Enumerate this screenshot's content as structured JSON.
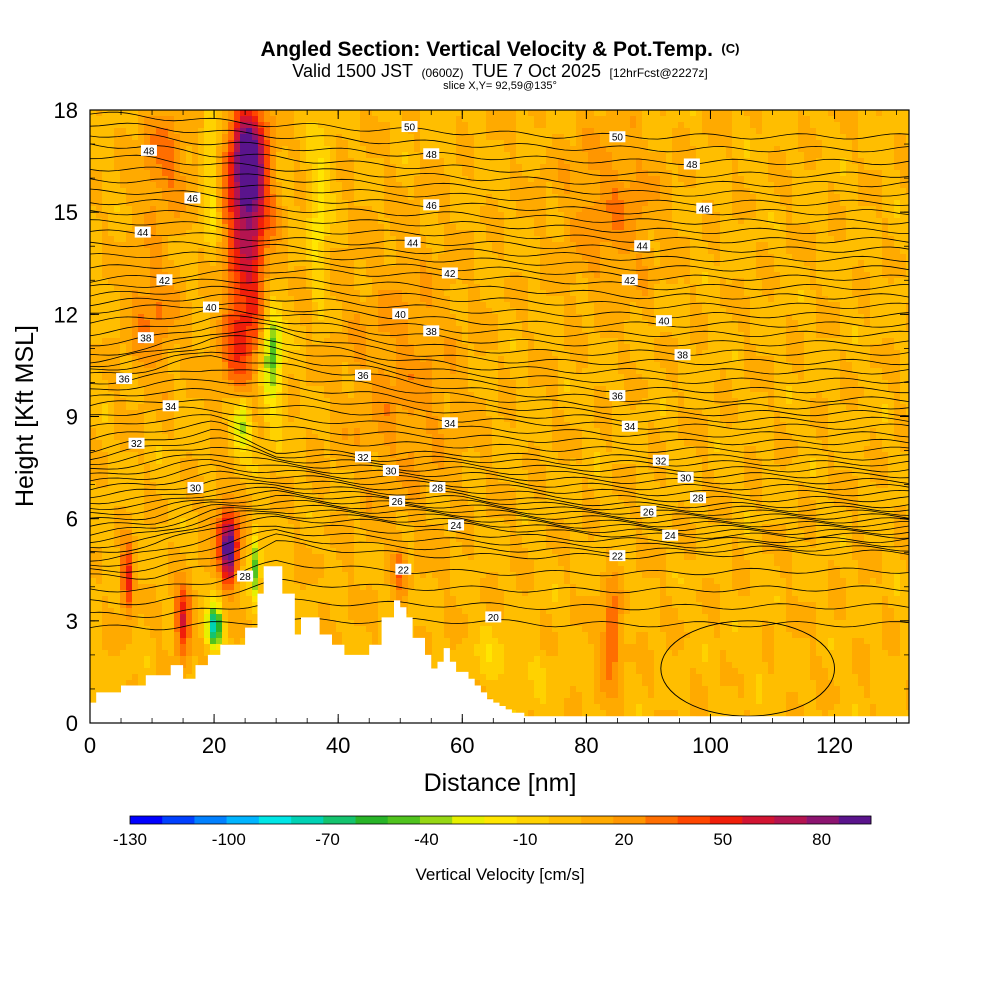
{
  "chart_data": {
    "type": "heatmap",
    "title": "Angled Section: Vertical Velocity & Pot.Temp.",
    "title_unit": "(C)",
    "subtitle_parts": [
      "Valid 1500 JST",
      "(0600Z)",
      "TUE 7 Oct 2025",
      "[12hrFcst@2227z]"
    ],
    "slice_label": "slice X,Y= 92,59@135°",
    "xlabel": "Distance [nm]",
    "ylabel": "Height [Kft MSL]",
    "xlim": [
      0,
      132
    ],
    "ylim": [
      0,
      18
    ],
    "x_ticks": [
      "0",
      "20",
      "40",
      "60",
      "80",
      "100",
      "120"
    ],
    "y_ticks": [
      "0",
      "3",
      "6",
      "9",
      "12",
      "15",
      "18"
    ],
    "x_tick_values": [
      0,
      20,
      40,
      60,
      80,
      100,
      120
    ],
    "y_tick_values": [
      0,
      3,
      6,
      9,
      12,
      15,
      18
    ],
    "colorbar": {
      "label": "Vertical Velocity [cm/s]",
      "tick_labels": [
        "-130",
        "-100",
        "-70",
        "-40",
        "-10",
        "20",
        "50",
        "80"
      ],
      "tick_values": [
        -130,
        -100,
        -70,
        -40,
        -10,
        20,
        50,
        80
      ],
      "range": [
        -130,
        95
      ],
      "colors": [
        "#0000ff",
        "#0040ff",
        "#0080ff",
        "#00b4ff",
        "#00e6e6",
        "#00d2b4",
        "#14c36e",
        "#28b428",
        "#50c31e",
        "#96d714",
        "#e6f000",
        "#ffe600",
        "#ffd200",
        "#ffbe00",
        "#ffaa00",
        "#ff9600",
        "#ff6e00",
        "#ff4600",
        "#f01e0a",
        "#d21432",
        "#b41450",
        "#8c1470",
        "#5a148c"
      ]
    },
    "background_velocity": 5,
    "velocity_features": [
      {
        "x": 25.5,
        "y": 16.5,
        "sx": 2.8,
        "sy": 1.6,
        "v": 85
      },
      {
        "x": 25.5,
        "y": 14.5,
        "sx": 3.5,
        "sy": 2.6,
        "v": 50
      },
      {
        "x": 24.5,
        "y": 11.0,
        "sx": 3.5,
        "sy": 2.2,
        "v": 35
      },
      {
        "x": 19.5,
        "y": 16.0,
        "sx": 1.2,
        "sy": 2.0,
        "v": -25
      },
      {
        "x": 37.0,
        "y": 15.0,
        "sx": 1.5,
        "sy": 2.5,
        "v": -25
      },
      {
        "x": 29.5,
        "y": 11.3,
        "sx": 1.6,
        "sy": 1.1,
        "v": -45
      },
      {
        "x": 29.0,
        "y": 10.0,
        "sx": 2.0,
        "sy": 1.5,
        "v": -30
      },
      {
        "x": 24.5,
        "y": 8.8,
        "sx": 1.6,
        "sy": 0.9,
        "v": -55
      },
      {
        "x": 22.5,
        "y": 5.0,
        "sx": 1.2,
        "sy": 0.9,
        "v": 70
      },
      {
        "x": 22.0,
        "y": 5.5,
        "sx": 2.5,
        "sy": 1.2,
        "v": 35
      },
      {
        "x": 15.0,
        "y": 3.0,
        "sx": 1.3,
        "sy": 1.0,
        "v": 55
      },
      {
        "x": 6.0,
        "y": 4.2,
        "sx": 1.0,
        "sy": 1.0,
        "v": 50
      },
      {
        "x": 20.0,
        "y": 2.8,
        "sx": 1.3,
        "sy": 0.6,
        "v": -85
      },
      {
        "x": 26.5,
        "y": 4.6,
        "sx": 0.8,
        "sy": 1.1,
        "v": -50
      },
      {
        "x": 12.0,
        "y": 16.5,
        "sx": 4.0,
        "sy": 1.5,
        "v": 25
      },
      {
        "x": 10.0,
        "y": 12.0,
        "sx": 4.0,
        "sy": 2.0,
        "v": 22
      },
      {
        "x": 84.0,
        "y": 2.5,
        "sx": 1.5,
        "sy": 1.5,
        "v": 35
      },
      {
        "x": 84.0,
        "y": 15.0,
        "sx": 8.0,
        "sy": 2.5,
        "v": 18
      },
      {
        "x": 50.0,
        "y": 4.5,
        "sx": 1.0,
        "sy": 0.8,
        "v": 25
      },
      {
        "x": 65.0,
        "y": 2.0,
        "sx": 3.5,
        "sy": 0.8,
        "v": -12
      },
      {
        "x": 71.0,
        "y": 1.5,
        "sx": 5.0,
        "sy": 0.7,
        "v": -8
      },
      {
        "x": 106.0,
        "y": 2.0,
        "sx": 3.0,
        "sy": 1.2,
        "v": -5
      },
      {
        "x": 50.0,
        "y": 10.0,
        "sx": 10.0,
        "sy": 4.0,
        "v": 15
      }
    ],
    "terrain": {
      "x": [
        0,
        1,
        1,
        5,
        5,
        9,
        9,
        13,
        13,
        15,
        15,
        17,
        17,
        19,
        19,
        21,
        21,
        23,
        23,
        25,
        25,
        27,
        27,
        28,
        28,
        29,
        29,
        31,
        31,
        33,
        33,
        34,
        34,
        35,
        35,
        37,
        37,
        39,
        39,
        41,
        41,
        43,
        43,
        45,
        45,
        47,
        47,
        49,
        49,
        50,
        50,
        51,
        51,
        52,
        52,
        54,
        54,
        55,
        55,
        56,
        56,
        57,
        57,
        58,
        58,
        59,
        59,
        61,
        61,
        62,
        62,
        63,
        63,
        64,
        64,
        65,
        65,
        66,
        66,
        67,
        67,
        68,
        68,
        69,
        69,
        70,
        70,
        72,
        72,
        132
      ],
      "y": [
        0.6,
        0.6,
        0.9,
        0.9,
        1.1,
        1.1,
        1.4,
        1.4,
        1.7,
        1.7,
        1.3,
        1.3,
        1.7,
        1.7,
        2.0,
        2.0,
        2.3,
        2.3,
        2.3,
        2.3,
        2.8,
        2.8,
        3.8,
        3.8,
        4.6,
        4.6,
        4.6,
        4.6,
        3.8,
        3.8,
        2.6,
        2.6,
        3.1,
        3.1,
        3.1,
        3.1,
        2.6,
        2.6,
        2.3,
        2.3,
        2.0,
        2.0,
        2.0,
        2.0,
        2.3,
        2.3,
        3.1,
        3.1,
        3.6,
        3.6,
        3.4,
        3.4,
        3.1,
        3.1,
        2.5,
        2.5,
        2.0,
        2.0,
        1.6,
        1.6,
        1.8,
        1.8,
        2.2,
        2.2,
        1.8,
        1.8,
        1.5,
        1.5,
        1.3,
        1.3,
        1.1,
        1.1,
        0.9,
        0.9,
        0.7,
        0.7,
        0.6,
        0.6,
        0.5,
        0.5,
        0.4,
        0.4,
        0.3,
        0.3,
        0.3,
        0.3,
        0.2,
        0.2,
        0.2,
        0.2
      ]
    },
    "theta_contour_baseline": [
      {
        "value": 20,
        "x": [
          0,
          10,
          20,
          30,
          45,
          60,
          75,
          90,
          110,
          132
        ],
        "y": [
          2.8,
          2.8,
          2.9,
          3.0,
          3.0,
          3.0,
          2.9,
          2.9,
          2.9,
          2.9
        ]
      },
      {
        "value": 22,
        "x": [
          0,
          10,
          20,
          30,
          45,
          60,
          75,
          90,
          110,
          132
        ],
        "y": [
          4.3,
          4.3,
          4.6,
          5.3,
          5.0,
          4.9,
          4.9,
          4.9,
          5.0,
          5.0
        ]
      },
      {
        "value": 24,
        "x": [
          0,
          10,
          20,
          30,
          45,
          60,
          75,
          90,
          110,
          132
        ],
        "y": [
          5.0,
          5.2,
          5.8,
          6.0,
          5.9,
          5.8,
          5.6,
          5.5,
          5.5,
          5.5
        ]
      },
      {
        "value": 28,
        "x": [
          0,
          10,
          20,
          30,
          45,
          60,
          75,
          90,
          110,
          132
        ],
        "y": [
          6.5,
          6.6,
          6.9,
          7.0,
          6.8,
          6.7,
          6.5,
          6.4,
          6.4,
          6.4
        ]
      },
      {
        "value": 32,
        "x": [
          0,
          10,
          20,
          30,
          45,
          60,
          75,
          90,
          110,
          132
        ],
        "y": [
          8.0,
          8.3,
          8.6,
          8.0,
          7.9,
          7.9,
          7.8,
          7.8,
          7.8,
          7.8
        ]
      },
      {
        "value": 34,
        "x": [
          0,
          10,
          20,
          30,
          45,
          60,
          75,
          90,
          110,
          132
        ],
        "y": [
          9.3,
          9.5,
          9.4,
          9.3,
          9.1,
          8.9,
          8.8,
          8.7,
          8.7,
          8.7
        ]
      },
      {
        "value": 36,
        "x": [
          0,
          10,
          20,
          30,
          45,
          60,
          75,
          90,
          110,
          132
        ],
        "y": [
          10.2,
          10.4,
          10.8,
          10.5,
          10.2,
          9.8,
          9.6,
          9.5,
          9.5,
          9.5
        ]
      },
      {
        "value": 38,
        "x": [
          0,
          10,
          20,
          30,
          45,
          60,
          75,
          90,
          110,
          132
        ],
        "y": [
          10.8,
          11.0,
          11.5,
          11.5,
          11.0,
          10.7,
          10.6,
          10.6,
          10.6,
          10.6
        ]
      },
      {
        "value": 40,
        "x": [
          0,
          10,
          20,
          30,
          45,
          60,
          75,
          90,
          110,
          132
        ],
        "y": [
          12.1,
          12.2,
          12.3,
          12.2,
          12.0,
          11.8,
          11.7,
          11.7,
          11.7,
          11.7
        ]
      },
      {
        "value": 42,
        "x": [
          0,
          10,
          20,
          30,
          45,
          60,
          75,
          90,
          110,
          132
        ],
        "y": [
          13.0,
          13.1,
          13.2,
          13.3,
          13.2,
          13.1,
          13.0,
          12.8,
          12.8,
          12.8
        ]
      },
      {
        "value": 44,
        "x": [
          0,
          10,
          20,
          30,
          45,
          60,
          75,
          90,
          110,
          132
        ],
        "y": [
          14.4,
          14.4,
          14.3,
          14.2,
          14.1,
          14.1,
          14.0,
          13.9,
          13.9,
          13.9
        ]
      },
      {
        "value": 46,
        "x": [
          0,
          10,
          20,
          30,
          45,
          60,
          75,
          90,
          110,
          132
        ],
        "y": [
          15.6,
          15.6,
          15.5,
          15.4,
          15.3,
          15.2,
          15.1,
          15.0,
          15.0,
          15.0
        ]
      },
      {
        "value": 48,
        "x": [
          0,
          10,
          20,
          30,
          45,
          60,
          75,
          90,
          110,
          132
        ],
        "y": [
          17.0,
          16.9,
          16.7,
          16.6,
          16.4,
          16.3,
          16.2,
          16.1,
          16.1,
          16.1
        ]
      },
      {
        "value": 50,
        "x": [
          0,
          10,
          20,
          30,
          45,
          60,
          75,
          90,
          110,
          132
        ],
        "y": [
          18.2,
          18.1,
          18.0,
          17.9,
          17.8,
          17.7,
          17.6,
          17.6,
          17.6,
          17.6
        ]
      }
    ],
    "contour_labels": [
      {
        "text": "50",
        "x": 51.5,
        "y": 17.5
      },
      {
        "text": "50",
        "x": 85.0,
        "y": 17.2
      },
      {
        "text": "48",
        "x": 9.5,
        "y": 16.8
      },
      {
        "text": "48",
        "x": 55.0,
        "y": 16.7
      },
      {
        "text": "48",
        "x": 97.0,
        "y": 16.4
      },
      {
        "text": "46",
        "x": 16.5,
        "y": 15.4
      },
      {
        "text": "46",
        "x": 55.0,
        "y": 15.2
      },
      {
        "text": "46",
        "x": 99.0,
        "y": 15.1
      },
      {
        "text": "44",
        "x": 8.5,
        "y": 14.4
      },
      {
        "text": "44",
        "x": 52.0,
        "y": 14.1
      },
      {
        "text": "44",
        "x": 89.0,
        "y": 14.0
      },
      {
        "text": "42",
        "x": 12.0,
        "y": 13.0
      },
      {
        "text": "42",
        "x": 58.0,
        "y": 13.2
      },
      {
        "text": "42",
        "x": 87.0,
        "y": 13.0
      },
      {
        "text": "40",
        "x": 19.5,
        "y": 12.2
      },
      {
        "text": "40",
        "x": 50.0,
        "y": 12.0
      },
      {
        "text": "40",
        "x": 92.5,
        "y": 11.8
      },
      {
        "text": "38",
        "x": 9.0,
        "y": 11.3
      },
      {
        "text": "38",
        "x": 55.0,
        "y": 11.5
      },
      {
        "text": "38",
        "x": 95.5,
        "y": 10.8
      },
      {
        "text": "36",
        "x": 5.5,
        "y": 10.1
      },
      {
        "text": "36",
        "x": 44.0,
        "y": 10.2
      },
      {
        "text": "36",
        "x": 85.0,
        "y": 9.6
      },
      {
        "text": "34",
        "x": 13.0,
        "y": 9.3
      },
      {
        "text": "34",
        "x": 58.0,
        "y": 8.8
      },
      {
        "text": "34",
        "x": 87.0,
        "y": 8.7
      },
      {
        "text": "32",
        "x": 7.5,
        "y": 8.2
      },
      {
        "text": "32",
        "x": 44.0,
        "y": 7.8
      },
      {
        "text": "32",
        "x": 92.0,
        "y": 7.7
      },
      {
        "text": "30",
        "x": 17.0,
        "y": 6.9
      },
      {
        "text": "30",
        "x": 48.5,
        "y": 7.4
      },
      {
        "text": "30",
        "x": 96.0,
        "y": 7.2
      },
      {
        "text": "28",
        "x": 56.0,
        "y": 6.9
      },
      {
        "text": "28",
        "x": 98.0,
        "y": 6.6
      },
      {
        "text": "26",
        "x": 49.5,
        "y": 6.5
      },
      {
        "text": "26",
        "x": 90.0,
        "y": 6.2
      },
      {
        "text": "24",
        "x": 59.0,
        "y": 5.8
      },
      {
        "text": "24",
        "x": 93.5,
        "y": 5.5
      },
      {
        "text": "22",
        "x": 50.5,
        "y": 4.5
      },
      {
        "text": "22",
        "x": 85.0,
        "y": 4.9
      },
      {
        "text": "28",
        "x": 25.0,
        "y": 4.3
      },
      {
        "text": "20",
        "x": 65.0,
        "y": 3.1
      }
    ]
  }
}
